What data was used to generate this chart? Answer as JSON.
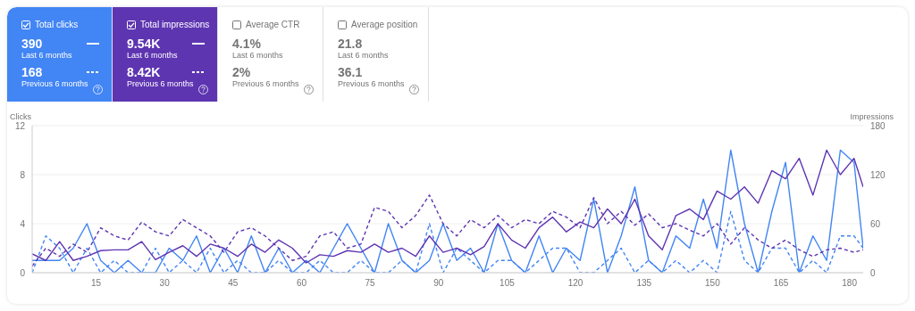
{
  "chart_data": [
    {
      "type": "other",
      "annotations": [
        "Total clicks",
        "390",
        "Last 6 months",
        "168",
        "Previous 6 months",
        "Total impressions",
        "9.54K",
        "Last 6 months",
        "8.42K",
        "Previous 6 months",
        "Average CTR",
        "4.1%",
        "Last 6 months",
        "2%",
        "Previous 6 months",
        "Average position",
        "21.8",
        "Last 6 months",
        "36.1",
        "Previous 6 months"
      ]
    },
    {
      "type": "line",
      "ylabel": "Clicks",
      "y2label": "Impressions",
      "x": [
        1,
        4,
        7,
        10,
        13,
        16,
        19,
        22,
        25,
        28,
        31,
        34,
        37,
        40,
        43,
        46,
        49,
        52,
        55,
        58,
        61,
        64,
        67,
        70,
        73,
        76,
        79,
        82,
        85,
        88,
        91,
        94,
        97,
        100,
        103,
        106,
        109,
        112,
        115,
        118,
        121,
        124,
        127,
        130,
        133,
        136,
        139,
        142,
        145,
        148,
        151,
        154,
        157,
        160,
        163,
        166,
        169,
        172,
        175,
        178,
        181,
        183
      ],
      "xlim": [
        1,
        183
      ],
      "xticks": [
        15,
        30,
        45,
        60,
        75,
        90,
        105,
        120,
        135,
        150,
        165,
        180
      ],
      "ylim": [
        0,
        12
      ],
      "yticks": [
        0,
        4,
        8,
        12
      ],
      "y2lim": [
        0,
        180
      ],
      "y2ticks": [
        0,
        60,
        120,
        180
      ],
      "grid": "y",
      "series": [
        {
          "color": "#4285f4",
          "line_style": "solid",
          "values": [
            1,
            1,
            1,
            2,
            4,
            1,
            0,
            1,
            0,
            0,
            2,
            1,
            3,
            0,
            2,
            0,
            3,
            0,
            2,
            0,
            1,
            0,
            2,
            4,
            2,
            0,
            4,
            1,
            0,
            1,
            4,
            1,
            2,
            0,
            4,
            1,
            0,
            3,
            0,
            2,
            1,
            6,
            0,
            3,
            7,
            1,
            0,
            3,
            2,
            6,
            2,
            10,
            4,
            0,
            5,
            9,
            0,
            3,
            1,
            10,
            9,
            2
          ]
        },
        {
          "color": "#4285f4",
          "line_style": "dashed",
          "values": [
            0,
            3,
            2,
            0,
            2,
            0,
            1,
            0,
            0,
            2,
            0,
            1,
            0,
            2,
            0,
            1,
            0,
            0,
            1,
            0,
            0,
            1,
            0,
            0,
            1,
            0,
            0,
            1,
            0,
            4,
            0,
            2,
            1,
            0,
            1,
            1,
            0,
            1,
            2,
            2,
            0,
            0,
            1,
            2,
            0,
            1,
            0,
            1,
            0,
            1,
            0,
            5,
            1,
            0,
            2,
            2,
            0,
            1,
            0,
            3,
            3,
            2
          ]
        },
        {
          "color": "#5e35b1",
          "line_style": "solid",
          "axis": "y2",
          "values": [
            23,
            15,
            38,
            15,
            20,
            27,
            28,
            28,
            38,
            16,
            25,
            33,
            20,
            35,
            30,
            20,
            35,
            25,
            40,
            30,
            12,
            22,
            20,
            27,
            25,
            35,
            25,
            30,
            20,
            45,
            25,
            30,
            22,
            32,
            60,
            40,
            30,
            55,
            68,
            50,
            62,
            55,
            78,
            60,
            90,
            45,
            28,
            70,
            78,
            65,
            100,
            90,
            105,
            85,
            125,
            115,
            140,
            95,
            150,
            120,
            140,
            105
          ]
        },
        {
          "color": "#5e35b1",
          "line_style": "dashed",
          "axis": "y2",
          "values": [
            8,
            30,
            20,
            35,
            25,
            55,
            45,
            40,
            62,
            50,
            45,
            65,
            55,
            45,
            25,
            50,
            55,
            45,
            30,
            15,
            20,
            45,
            50,
            30,
            35,
            80,
            75,
            55,
            70,
            95,
            60,
            45,
            65,
            55,
            70,
            55,
            65,
            60,
            75,
            68,
            55,
            92,
            60,
            75,
            58,
            72,
            55,
            60,
            52,
            45,
            60,
            35,
            55,
            40,
            30,
            40,
            28,
            20,
            28,
            30,
            25,
            28
          ]
        }
      ]
    }
  ]
}
